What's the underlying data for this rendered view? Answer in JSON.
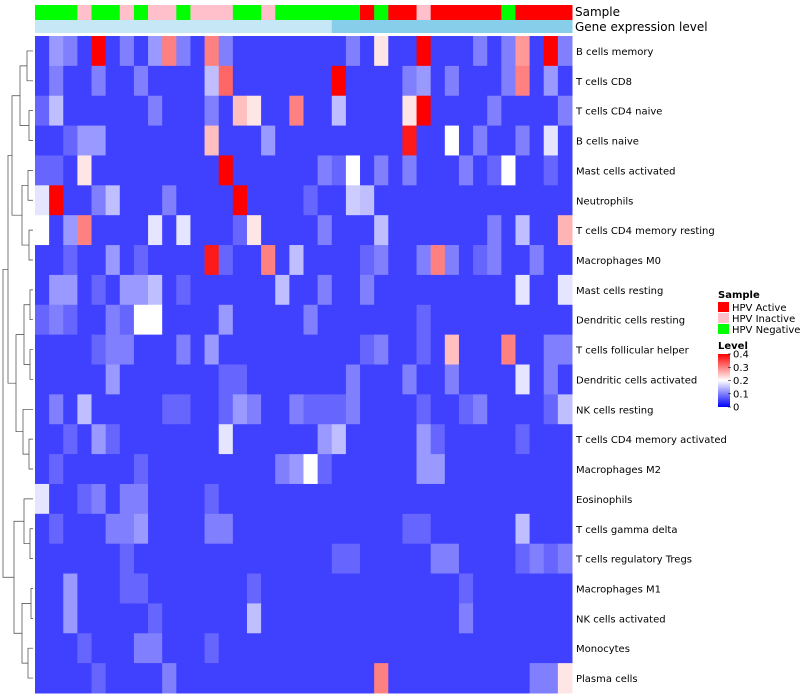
{
  "chart_data": {
    "type": "heatmap",
    "title": "",
    "annotation_tracks": [
      {
        "name": "Sample",
        "label": "Sample"
      },
      {
        "name": "Gene expression level",
        "label": "Gene expression level"
      }
    ],
    "sample_track": [
      "Negative",
      "Negative",
      "Negative",
      "Inactive",
      "Negative",
      "Negative",
      "Inactive",
      "Negative",
      "Inactive",
      "Inactive",
      "Negative",
      "Inactive",
      "Inactive",
      "Inactive",
      "Negative",
      "Negative",
      "Inactive",
      "Negative",
      "Negative",
      "Negative",
      "Negative",
      "Negative",
      "Negative",
      "Active",
      "Negative",
      "Active",
      "Active",
      "Inactive",
      "Active",
      "Active",
      "Active",
      "Active",
      "Active",
      "Negative",
      "Active",
      "Active",
      "Active",
      "Active"
    ],
    "expression_track_color": "#87ceeb",
    "expression_track_light_color": "#c6e8f6",
    "rows": [
      "B cells memory",
      "T cells CD8",
      "T cells CD4 naive",
      "B cells naive",
      "Mast cells activated",
      "Neutrophils",
      "T cells CD4 memory resting",
      "Macrophages M0",
      "Mast cells resting",
      "Dendritic cells resting",
      "T cells follicular helper",
      "Dendritic cells activated",
      "NK cells resting",
      "T cells CD4 memory activated",
      "Macrophages M2",
      "Eosinophils",
      "T cells gamma delta",
      "T cells regulatory  Tregs",
      "Macrophages M1",
      "NK cells activated",
      "Monocytes",
      "Plasma cells"
    ],
    "values": [
      [
        0.05,
        0.12,
        0.1,
        0.05,
        0.4,
        0.05,
        0.1,
        0.05,
        0.12,
        0.3,
        0.1,
        0.05,
        0.3,
        0.1,
        0.05,
        0.05,
        0.05,
        0.05,
        0.05,
        0.05,
        0.05,
        0.05,
        0.1,
        0.05,
        0.22,
        0.05,
        0.05,
        0.4,
        0.05,
        0.05,
        0.05,
        0.1,
        0.05,
        0.1,
        0.28,
        0.05,
        0.4,
        0.1
      ],
      [
        0.05,
        0.1,
        0.05,
        0.05,
        0.1,
        0.05,
        0.05,
        0.1,
        0.05,
        0.05,
        0.05,
        0.05,
        0.15,
        0.32,
        0.05,
        0.05,
        0.05,
        0.05,
        0.05,
        0.05,
        0.05,
        0.4,
        0.05,
        0.05,
        0.05,
        0.05,
        0.1,
        0.12,
        0.05,
        0.1,
        0.05,
        0.05,
        0.05,
        0.1,
        0.3,
        0.05,
        0.12,
        0.05
      ],
      [
        0.08,
        0.15,
        0.05,
        0.05,
        0.05,
        0.05,
        0.05,
        0.05,
        0.1,
        0.05,
        0.05,
        0.05,
        0.1,
        0.05,
        0.25,
        0.22,
        0.05,
        0.05,
        0.3,
        0.05,
        0.05,
        0.15,
        0.05,
        0.05,
        0.05,
        0.05,
        0.22,
        0.4,
        0.05,
        0.05,
        0.05,
        0.05,
        0.1,
        0.05,
        0.05,
        0.05,
        0.05,
        0.1
      ],
      [
        0.05,
        0.05,
        0.08,
        0.12,
        0.12,
        0.05,
        0.05,
        0.05,
        0.05,
        0.05,
        0.05,
        0.05,
        0.25,
        0.05,
        0.05,
        0.05,
        0.12,
        0.05,
        0.05,
        0.05,
        0.05,
        0.05,
        0.05,
        0.05,
        0.05,
        0.05,
        0.38,
        0.05,
        0.05,
        0.2,
        0.05,
        0.1,
        0.05,
        0.05,
        0.1,
        0.05,
        0.18,
        0.05
      ],
      [
        0.08,
        0.08,
        0.05,
        0.22,
        0.05,
        0.05,
        0.05,
        0.05,
        0.05,
        0.05,
        0.05,
        0.05,
        0.05,
        0.4,
        0.05,
        0.05,
        0.05,
        0.05,
        0.05,
        0.05,
        0.1,
        0.08,
        0.2,
        0.05,
        0.1,
        0.05,
        0.1,
        0.05,
        0.05,
        0.05,
        0.1,
        0.05,
        0.08,
        0.2,
        0.05,
        0.05,
        0.08,
        0.05
      ],
      [
        0.18,
        0.4,
        0.05,
        0.05,
        0.1,
        0.15,
        0.05,
        0.05,
        0.05,
        0.1,
        0.05,
        0.05,
        0.05,
        0.05,
        0.4,
        0.05,
        0.05,
        0.05,
        0.05,
        0.08,
        0.05,
        0.05,
        0.16,
        0.15,
        0.05,
        0.05,
        0.05,
        0.05,
        0.05,
        0.05,
        0.05,
        0.05,
        0.05,
        0.05,
        0.05,
        0.05,
        0.05,
        0.05
      ],
      [
        0.2,
        0.05,
        0.12,
        0.3,
        0.05,
        0.05,
        0.05,
        0.05,
        0.18,
        0.05,
        0.18,
        0.05,
        0.05,
        0.05,
        0.08,
        0.22,
        0.05,
        0.05,
        0.05,
        0.05,
        0.1,
        0.05,
        0.05,
        0.05,
        0.15,
        0.05,
        0.05,
        0.05,
        0.05,
        0.05,
        0.05,
        0.05,
        0.1,
        0.05,
        0.15,
        0.05,
        0.05,
        0.26
      ],
      [
        0.05,
        0.05,
        0.08,
        0.05,
        0.05,
        0.12,
        0.05,
        0.08,
        0.05,
        0.05,
        0.05,
        0.05,
        0.38,
        0.08,
        0.05,
        0.05,
        0.3,
        0.05,
        0.15,
        0.05,
        0.05,
        0.05,
        0.05,
        0.08,
        0.1,
        0.05,
        0.05,
        0.1,
        0.3,
        0.1,
        0.05,
        0.08,
        0.1,
        0.05,
        0.05,
        0.1,
        0.05,
        0.05
      ],
      [
        0.05,
        0.12,
        0.12,
        0.05,
        0.08,
        0.05,
        0.12,
        0.12,
        0.15,
        0.05,
        0.08,
        0.05,
        0.05,
        0.05,
        0.05,
        0.05,
        0.05,
        0.15,
        0.05,
        0.05,
        0.1,
        0.05,
        0.05,
        0.1,
        0.05,
        0.05,
        0.05,
        0.05,
        0.05,
        0.05,
        0.05,
        0.05,
        0.05,
        0.05,
        0.18,
        0.05,
        0.05,
        0.18
      ],
      [
        0.08,
        0.1,
        0.08,
        0.05,
        0.05,
        0.1,
        0.08,
        0.2,
        0.2,
        0.05,
        0.05,
        0.05,
        0.05,
        0.12,
        0.05,
        0.05,
        0.05,
        0.05,
        0.05,
        0.1,
        0.05,
        0.05,
        0.05,
        0.05,
        0.05,
        0.05,
        0.05,
        0.08,
        0.05,
        0.05,
        0.05,
        0.05,
        0.05,
        0.05,
        0.05,
        0.05,
        0.05,
        0.05
      ],
      [
        0.05,
        0.05,
        0.05,
        0.05,
        0.08,
        0.1,
        0.1,
        0.05,
        0.05,
        0.05,
        0.1,
        0.05,
        0.12,
        0.05,
        0.05,
        0.05,
        0.05,
        0.05,
        0.05,
        0.05,
        0.05,
        0.05,
        0.05,
        0.08,
        0.1,
        0.05,
        0.05,
        0.08,
        0.05,
        0.25,
        0.05,
        0.05,
        0.05,
        0.3,
        0.05,
        0.05,
        0.1,
        0.1
      ],
      [
        0.05,
        0.05,
        0.05,
        0.05,
        0.05,
        0.12,
        0.05,
        0.05,
        0.05,
        0.05,
        0.05,
        0.05,
        0.05,
        0.08,
        0.08,
        0.05,
        0.05,
        0.05,
        0.05,
        0.05,
        0.05,
        0.05,
        0.1,
        0.05,
        0.05,
        0.05,
        0.1,
        0.05,
        0.05,
        0.1,
        0.05,
        0.05,
        0.05,
        0.05,
        0.18,
        0.05,
        0.1,
        0.05
      ],
      [
        0.05,
        0.1,
        0.05,
        0.15,
        0.05,
        0.05,
        0.05,
        0.05,
        0.05,
        0.08,
        0.08,
        0.05,
        0.05,
        0.08,
        0.12,
        0.1,
        0.05,
        0.05,
        0.1,
        0.08,
        0.08,
        0.08,
        0.1,
        0.05,
        0.05,
        0.05,
        0.05,
        0.08,
        0.05,
        0.05,
        0.08,
        0.1,
        0.05,
        0.05,
        0.05,
        0.05,
        0.08,
        0.15
      ],
      [
        0.05,
        0.05,
        0.08,
        0.05,
        0.12,
        0.08,
        0.05,
        0.05,
        0.05,
        0.05,
        0.05,
        0.05,
        0.05,
        0.18,
        0.05,
        0.05,
        0.05,
        0.05,
        0.05,
        0.05,
        0.12,
        0.15,
        0.05,
        0.05,
        0.05,
        0.05,
        0.05,
        0.12,
        0.08,
        0.05,
        0.05,
        0.05,
        0.05,
        0.05,
        0.08,
        0.05,
        0.05,
        0.05
      ],
      [
        0.05,
        0.08,
        0.05,
        0.05,
        0.05,
        0.05,
        0.05,
        0.08,
        0.05,
        0.05,
        0.05,
        0.05,
        0.05,
        0.05,
        0.05,
        0.05,
        0.05,
        0.1,
        0.12,
        0.2,
        0.08,
        0.05,
        0.05,
        0.05,
        0.05,
        0.05,
        0.05,
        0.12,
        0.12,
        0.05,
        0.05,
        0.05,
        0.05,
        0.05,
        0.05,
        0.05,
        0.05,
        0.05
      ],
      [
        0.18,
        0.05,
        0.05,
        0.08,
        0.1,
        0.05,
        0.1,
        0.1,
        0.05,
        0.05,
        0.05,
        0.05,
        0.08,
        0.05,
        0.05,
        0.05,
        0.05,
        0.05,
        0.05,
        0.05,
        0.05,
        0.05,
        0.05,
        0.05,
        0.05,
        0.05,
        0.05,
        0.05,
        0.05,
        0.05,
        0.05,
        0.05,
        0.05,
        0.05,
        0.05,
        0.05,
        0.05,
        0.05
      ],
      [
        0.05,
        0.08,
        0.05,
        0.05,
        0.05,
        0.1,
        0.1,
        0.12,
        0.05,
        0.05,
        0.05,
        0.05,
        0.1,
        0.1,
        0.05,
        0.05,
        0.05,
        0.05,
        0.05,
        0.05,
        0.05,
        0.05,
        0.05,
        0.05,
        0.05,
        0.05,
        0.08,
        0.08,
        0.05,
        0.05,
        0.05,
        0.05,
        0.05,
        0.05,
        0.15,
        0.05,
        0.05,
        0.05
      ],
      [
        0.05,
        0.05,
        0.05,
        0.05,
        0.05,
        0.05,
        0.08,
        0.05,
        0.05,
        0.05,
        0.05,
        0.05,
        0.05,
        0.05,
        0.05,
        0.05,
        0.05,
        0.05,
        0.05,
        0.05,
        0.05,
        0.08,
        0.08,
        0.05,
        0.05,
        0.05,
        0.05,
        0.05,
        0.1,
        0.1,
        0.05,
        0.05,
        0.05,
        0.05,
        0.08,
        0.1,
        0.08,
        0.1
      ],
      [
        0.05,
        0.05,
        0.12,
        0.05,
        0.05,
        0.05,
        0.08,
        0.08,
        0.05,
        0.05,
        0.05,
        0.05,
        0.05,
        0.05,
        0.05,
        0.08,
        0.05,
        0.05,
        0.05,
        0.05,
        0.05,
        0.05,
        0.05,
        0.05,
        0.05,
        0.05,
        0.05,
        0.05,
        0.05,
        0.05,
        0.08,
        0.05,
        0.05,
        0.05,
        0.05,
        0.05,
        0.05,
        0.05
      ],
      [
        0.05,
        0.05,
        0.12,
        0.05,
        0.05,
        0.05,
        0.05,
        0.05,
        0.08,
        0.05,
        0.05,
        0.05,
        0.05,
        0.05,
        0.05,
        0.15,
        0.05,
        0.05,
        0.05,
        0.05,
        0.05,
        0.05,
        0.05,
        0.05,
        0.05,
        0.05,
        0.05,
        0.05,
        0.05,
        0.05,
        0.1,
        0.05,
        0.05,
        0.05,
        0.05,
        0.05,
        0.05,
        0.05
      ],
      [
        0.05,
        0.05,
        0.05,
        0.08,
        0.05,
        0.05,
        0.05,
        0.1,
        0.1,
        0.05,
        0.05,
        0.05,
        0.08,
        0.05,
        0.05,
        0.05,
        0.05,
        0.05,
        0.05,
        0.05,
        0.05,
        0.05,
        0.05,
        0.05,
        0.05,
        0.05,
        0.05,
        0.05,
        0.05,
        0.05,
        0.05,
        0.05,
        0.05,
        0.05,
        0.05,
        0.05,
        0.05,
        0.05
      ],
      [
        0.05,
        0.05,
        0.05,
        0.05,
        0.08,
        0.05,
        0.05,
        0.05,
        0.05,
        0.1,
        0.05,
        0.05,
        0.05,
        0.05,
        0.05,
        0.05,
        0.05,
        0.05,
        0.05,
        0.05,
        0.05,
        0.05,
        0.05,
        0.05,
        0.3,
        0.05,
        0.05,
        0.05,
        0.05,
        0.05,
        0.05,
        0.05,
        0.05,
        0.05,
        0.05,
        0.1,
        0.1,
        0.22
      ]
    ],
    "legend": {
      "sample": {
        "title": "Sample",
        "entries": [
          {
            "key": "Active",
            "label": "HPV Active",
            "color": "#ff0000"
          },
          {
            "key": "Inactive",
            "label": "HPV Inactive",
            "color": "#ffc0cb"
          },
          {
            "key": "Negative",
            "label": "HPV Negative",
            "color": "#00ff00"
          }
        ]
      },
      "level": {
        "title": "Level",
        "ticks": [
          0.4,
          0.3,
          0.2,
          0.1,
          0
        ],
        "tick_labels": [
          "0.4",
          "0.3",
          "0.2",
          "0.1",
          "0"
        ],
        "range": [
          0,
          0.4
        ]
      }
    },
    "colors": {
      "low": "#0000ff",
      "mid": "#ffffff",
      "high": "#ff0000"
    },
    "scale": {
      "min": 0,
      "mid": 0.2,
      "max": 0.4
    },
    "dendrogram": {
      "side": "left",
      "type": "hierarchical clustering of rows"
    }
  }
}
